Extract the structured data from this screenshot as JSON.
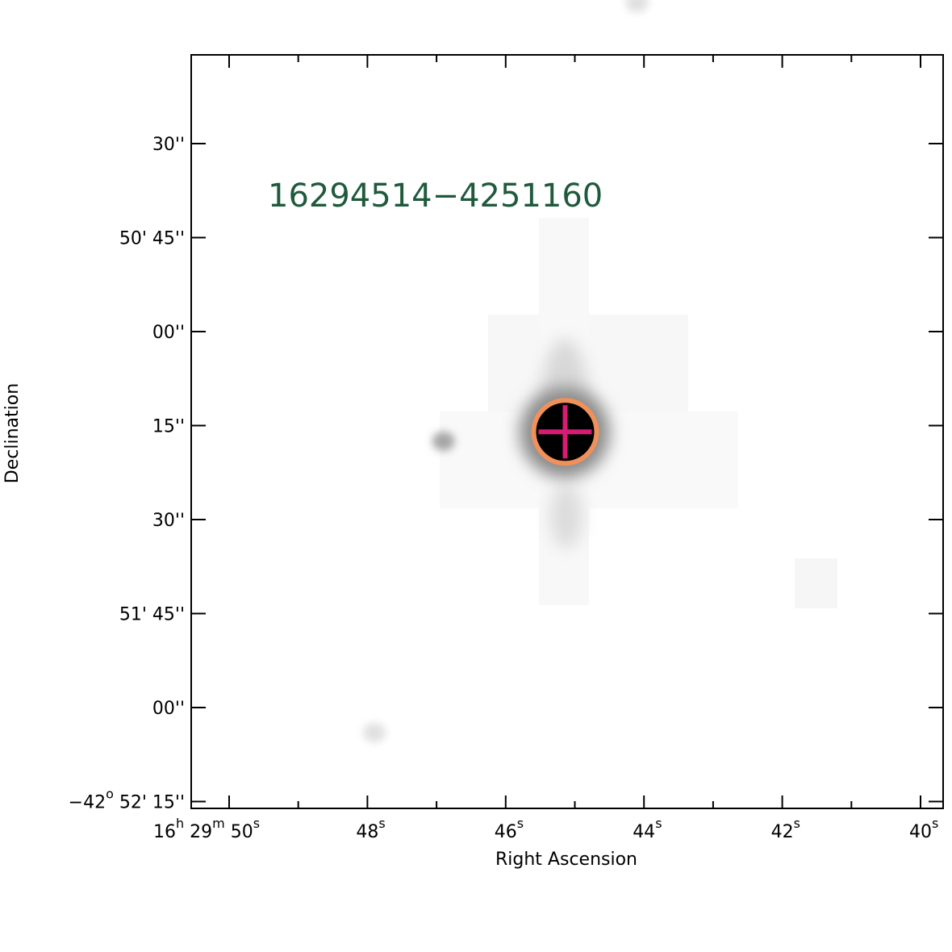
{
  "chart_data": {
    "type": "sky-image",
    "source_label": "16294514−4251160",
    "xlabel": "Right Ascension",
    "ylabel": "Declination",
    "colormap": "inverted grayscale",
    "xlim": [
      "16h 29m 50.4s",
      "16h 29m 39.6s"
    ],
    "ylim": [
      "-42° 52' 15\"",
      "-42° 50' 15\""
    ],
    "x_ticks": [
      {
        "value": 50,
        "h": "16",
        "m": "29",
        "s": "50",
        "full": true
      },
      {
        "value": 48,
        "s": "48"
      },
      {
        "value": 46,
        "s": "46"
      },
      {
        "value": 44,
        "s": "44"
      },
      {
        "value": 42,
        "s": "42"
      },
      {
        "value": 40,
        "s": "40"
      }
    ],
    "y_ticks": [
      {
        "value_arcsec": 30,
        "text": "30''"
      },
      {
        "value_arcsec": 45,
        "text": "50' 45''"
      },
      {
        "value_arcsec": 60,
        "text": "00''"
      },
      {
        "value_arcsec": 75,
        "text": "15''"
      },
      {
        "value_arcsec": 90,
        "text": "30''"
      },
      {
        "value_arcsec": 105,
        "text": "51' 45''"
      },
      {
        "value_arcsec": 120,
        "text": "00''"
      },
      {
        "value_arcsec": 135,
        "deg": "−42",
        "rest": " 52' 15''",
        "full": true
      }
    ],
    "target_marker": {
      "ra_seconds": 45.14,
      "dec_offset_arcsec": 76.0,
      "circle_color": "#f0905a",
      "cross_color": "#d81b74"
    },
    "secondary_sources": [
      {
        "ra_seconds": 46.9,
        "dec_offset_arcsec": 77.5,
        "strength": 0.35
      },
      {
        "ra_seconds": 44.1,
        "dec_offset_arcsec": 7.5,
        "strength": 0.12
      },
      {
        "ra_seconds": 47.9,
        "dec_offset_arcsec": 124.0,
        "strength": 0.12
      }
    ]
  }
}
